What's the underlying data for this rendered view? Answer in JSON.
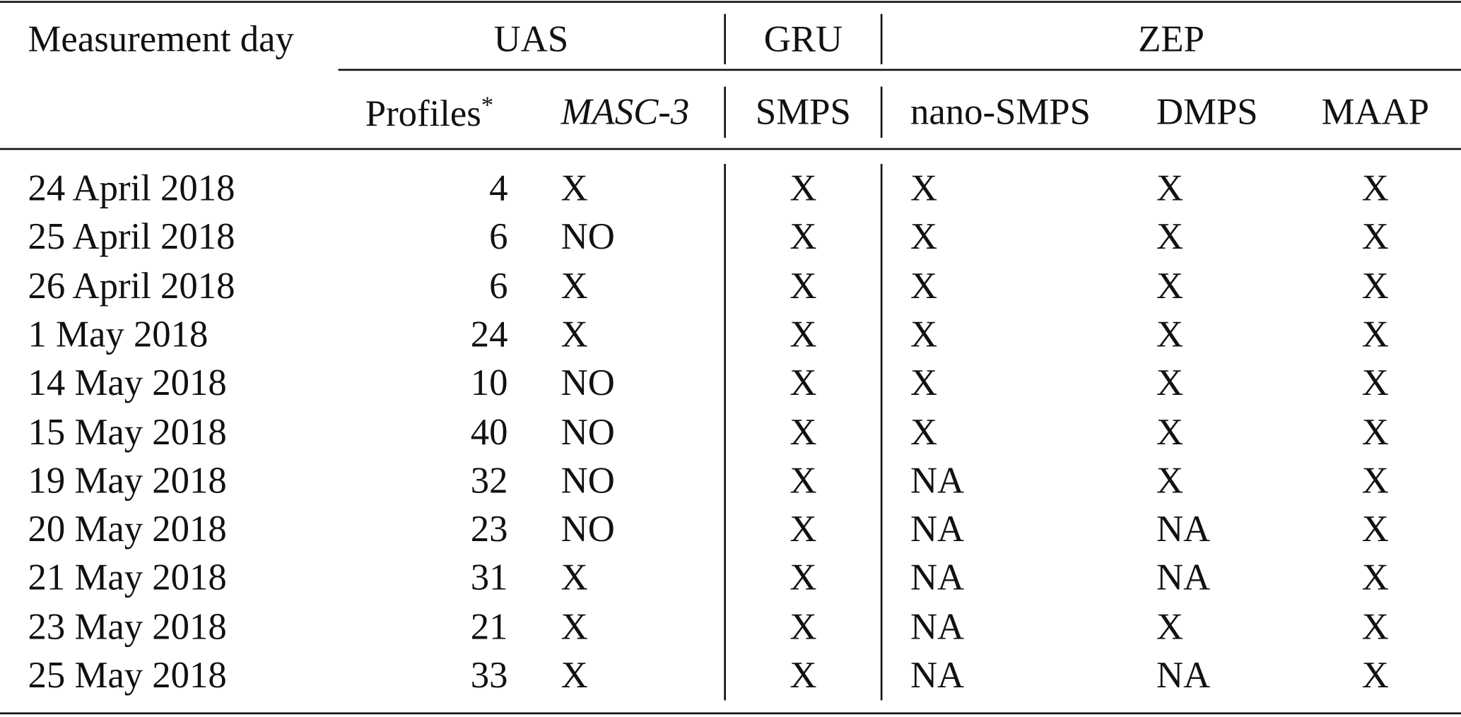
{
  "header": {
    "measurement_day": "Measurement day",
    "groups": {
      "uas": "UAS",
      "gru": "GRU",
      "zep": "ZEP"
    },
    "columns": {
      "profiles": "Profiles",
      "profiles_mark": "*",
      "masc3": "MASC-3",
      "smps": "SMPS",
      "nano_smps": "nano-SMPS",
      "dmps": "DMPS",
      "maap": "MAAP"
    }
  },
  "rows": [
    {
      "day": "24 April 2018",
      "profiles": "4",
      "masc3": "X",
      "smps": "X",
      "nano_smps": "X",
      "dmps": "X",
      "maap": "X"
    },
    {
      "day": "25 April 2018",
      "profiles": "6",
      "masc3": "NO",
      "smps": "X",
      "nano_smps": "X",
      "dmps": "X",
      "maap": "X"
    },
    {
      "day": "26 April 2018",
      "profiles": "6",
      "masc3": "X",
      "smps": "X",
      "nano_smps": "X",
      "dmps": "X",
      "maap": "X"
    },
    {
      "day": "1 May 2018",
      "profiles": "24",
      "masc3": "X",
      "smps": "X",
      "nano_smps": "X",
      "dmps": "X",
      "maap": "X"
    },
    {
      "day": "14 May 2018",
      "profiles": "10",
      "masc3": "NO",
      "smps": "X",
      "nano_smps": "X",
      "dmps": "X",
      "maap": "X"
    },
    {
      "day": "15 May 2018",
      "profiles": "40",
      "masc3": "NO",
      "smps": "X",
      "nano_smps": "X",
      "dmps": "X",
      "maap": "X"
    },
    {
      "day": "19 May 2018",
      "profiles": "32",
      "masc3": "NO",
      "smps": "X",
      "nano_smps": "NA",
      "dmps": "X",
      "maap": "X"
    },
    {
      "day": "20 May 2018",
      "profiles": "23",
      "masc3": "NO",
      "smps": "X",
      "nano_smps": "NA",
      "dmps": "NA",
      "maap": "X"
    },
    {
      "day": "21 May 2018",
      "profiles": "31",
      "masc3": "X",
      "smps": "X",
      "nano_smps": "NA",
      "dmps": "NA",
      "maap": "X"
    },
    {
      "day": "23 May 2018",
      "profiles": "21",
      "masc3": "X",
      "smps": "X",
      "nano_smps": "NA",
      "dmps": "X",
      "maap": "X"
    },
    {
      "day": "25 May 2018",
      "profiles": "33",
      "masc3": "X",
      "smps": "X",
      "nano_smps": "NA",
      "dmps": "NA",
      "maap": "X"
    }
  ]
}
